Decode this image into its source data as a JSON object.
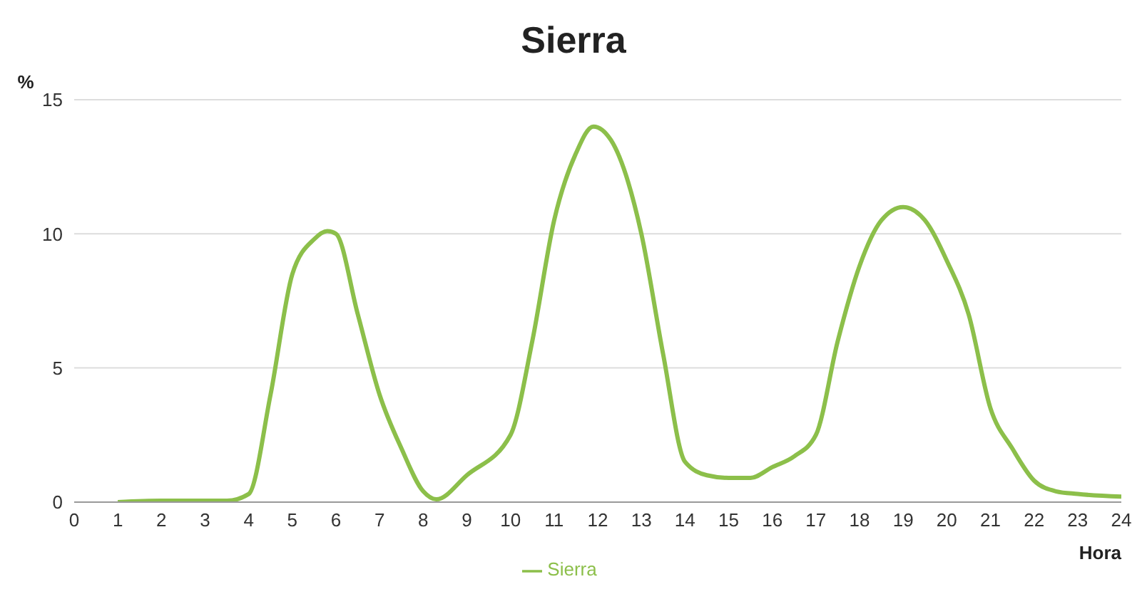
{
  "chart_data": {
    "type": "line",
    "title": "Sierra",
    "xlabel": "Hora",
    "ylabel": "%",
    "x": [
      1,
      2,
      3,
      3.5,
      4,
      4.5,
      5,
      5.5,
      5.8,
      6,
      6.5,
      7,
      7.5,
      8,
      8.3,
      9,
      10,
      10.5,
      11,
      11.5,
      11.9,
      12.3,
      13,
      13.5,
      14,
      14.5,
      15,
      15.5,
      16,
      16.5,
      17,
      17.5,
      18,
      18.5,
      19,
      19.5,
      20,
      20.5,
      21,
      21.5,
      22,
      22.5,
      23,
      24
    ],
    "series": [
      {
        "name": "Sierra",
        "color": "#8cbf4a",
        "values": [
          0,
          0.05,
          0.05,
          0.05,
          0.3,
          4,
          8.5,
          9.8,
          10.1,
          10,
          7,
          4,
          2,
          0.4,
          0.1,
          1,
          2.5,
          6,
          10.5,
          13,
          14,
          13.5,
          10,
          5.5,
          1.5,
          1,
          0.9,
          0.9,
          1.3,
          1.7,
          2.5,
          6,
          8.8,
          10.5,
          11,
          10.5,
          9,
          7,
          3.5,
          2,
          0.8,
          0.4,
          0.3,
          0.2
        ]
      }
    ],
    "xlim": [
      0,
      24
    ],
    "xticks": [
      0,
      1,
      2,
      3,
      4,
      5,
      6,
      7,
      8,
      9,
      10,
      11,
      12,
      13,
      14,
      15,
      16,
      17,
      18,
      19,
      20,
      21,
      22,
      23,
      24
    ],
    "ylim": [
      0,
      15
    ],
    "yticks": [
      0,
      5,
      10,
      15
    ],
    "grid": "y",
    "legend": "bottom",
    "marker": "none",
    "line_style": "solid"
  }
}
